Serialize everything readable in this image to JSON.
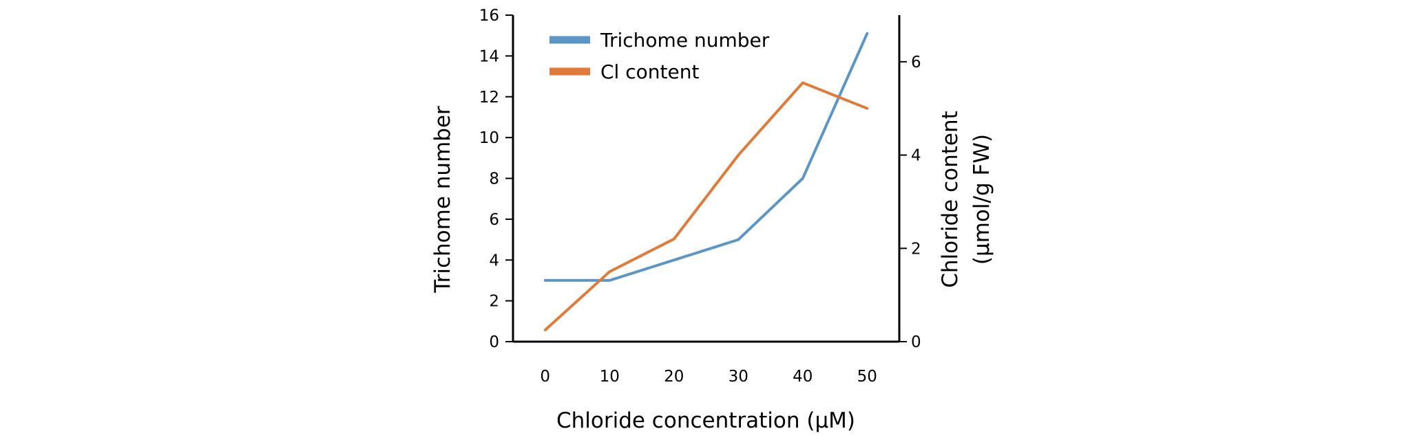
{
  "chart_data": {
    "type": "line",
    "title": "",
    "xlabel": "Chloride concentration (μM)",
    "ylabel_left": "Trichome number",
    "ylabel_right_lines": [
      "Chloride content",
      "(μmol/g FW)"
    ],
    "x": [
      0,
      10,
      20,
      30,
      40,
      50
    ],
    "x_ticks": [
      "0",
      "10",
      "20",
      "30",
      "40",
      "50"
    ],
    "xlim": [
      -5,
      55
    ],
    "ylim_left": [
      0,
      16
    ],
    "y_ticks_left": [
      "0",
      "2",
      "4",
      "6",
      "8",
      "10",
      "12",
      "14",
      "16"
    ],
    "ylim_right": [
      0,
      7
    ],
    "y_ticks_right": [
      "0",
      "2",
      "4",
      "6"
    ],
    "grid": false,
    "legend_position": "top-left",
    "series": [
      {
        "name": "Trichome number",
        "axis": "left",
        "color": "#5b96c6",
        "values": [
          3,
          3,
          4,
          5,
          8,
          15.1
        ]
      },
      {
        "name": "Cl content",
        "axis": "right",
        "color": "#e07b3a",
        "values": [
          0.25,
          1.5,
          2.2,
          4.0,
          5.55,
          5.0
        ]
      }
    ]
  }
}
